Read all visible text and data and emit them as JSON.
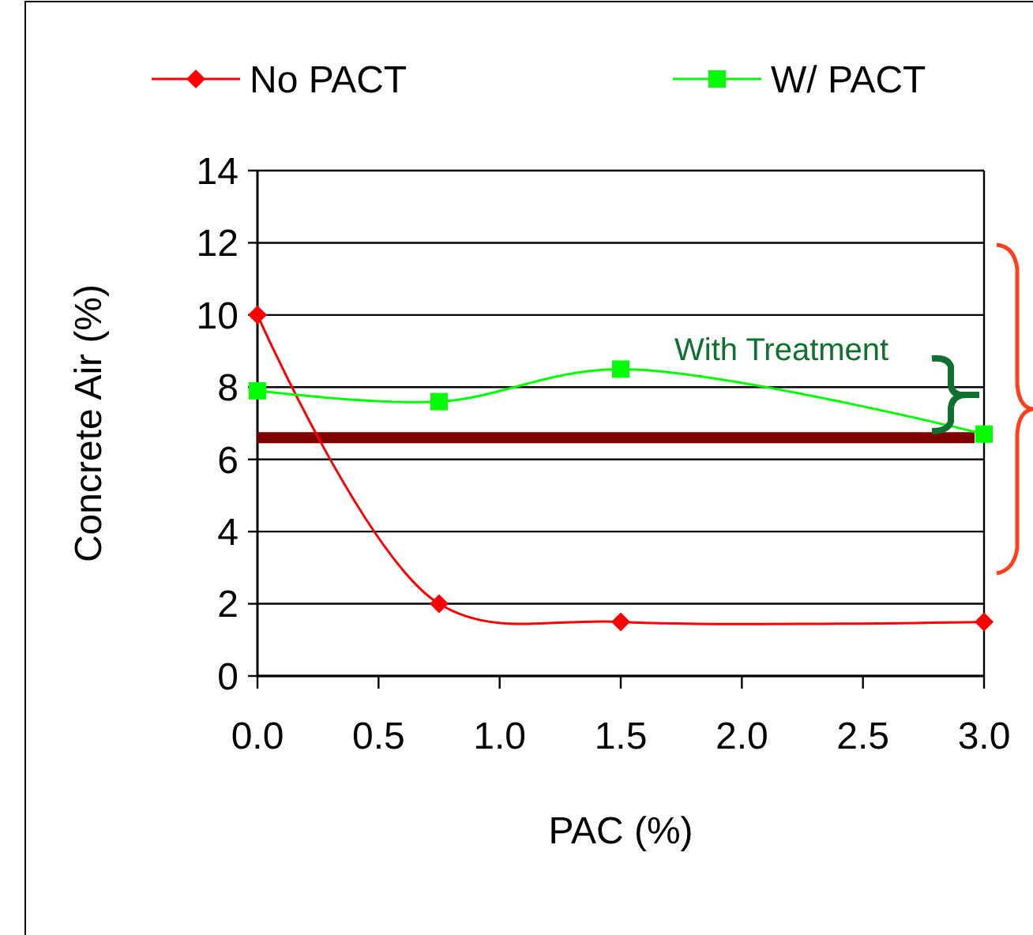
{
  "chart_data": {
    "type": "line",
    "xlabel": "PAC (%)",
    "ylabel": "Concrete Air (%)",
    "x": [
      0,
      0.75,
      1.5,
      3.0
    ],
    "series": [
      {
        "name": "No PACT",
        "color": "#ff0000",
        "marker": "diamond",
        "values": [
          10,
          2,
          1.5,
          1.5
        ]
      },
      {
        "name": "W/ PACT",
        "color": "#00ff00",
        "marker": "square",
        "values": [
          7.9,
          7.6,
          8.5,
          6.7
        ]
      }
    ],
    "xlim": [
      0,
      3
    ],
    "xticks": [
      {
        "value": 0,
        "label": "0.0"
      },
      {
        "value": 0.5,
        "label": "0.5"
      },
      {
        "value": 1,
        "label": "1.0"
      },
      {
        "value": 1.5,
        "label": "1.5"
      },
      {
        "value": 2,
        "label": "2.0"
      },
      {
        "value": 2.5,
        "label": "2.5"
      },
      {
        "value": 3,
        "label": "3.0"
      }
    ],
    "ylim": [
      0,
      14
    ],
    "yticks": [
      0,
      2,
      4,
      6,
      8,
      10,
      12,
      14
    ],
    "grid": "y",
    "legend": "top",
    "ref_lines": [
      {
        "axis": "y",
        "value": 6.6,
        "color": "#800000"
      }
    ],
    "annotations": [
      "With Treatment"
    ]
  }
}
